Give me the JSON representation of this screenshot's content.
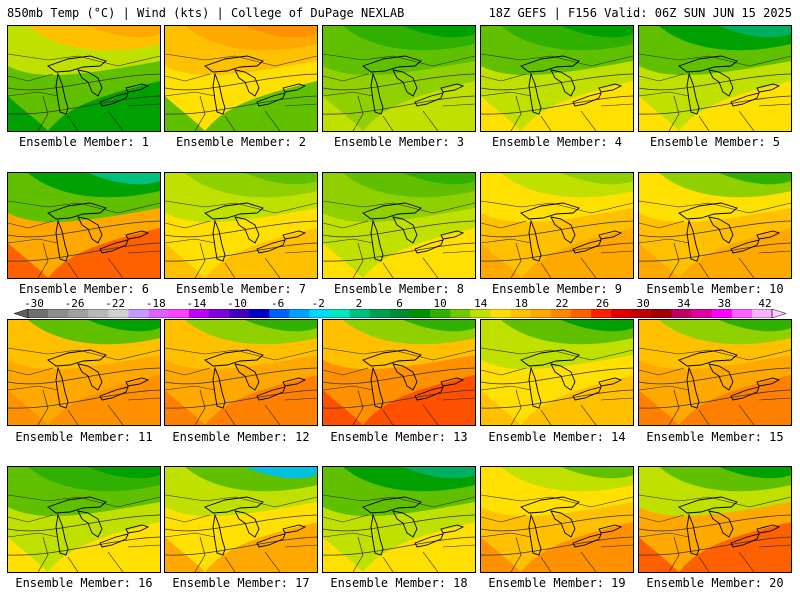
{
  "header": {
    "title_left": "850mb Temp (°C) | Wind (kts) | College of DuPage NEXLAB",
    "title_right": "18Z GEFS | F156 Valid: 06Z SUN JUN 15 2025"
  },
  "members": [
    {
      "label": "Ensemble Member: 1",
      "palette": [
        "#00a000",
        "#60c000",
        "#c0e000",
        "#ffc000",
        "#ffa800"
      ]
    },
    {
      "label": "Ensemble Member: 2",
      "palette": [
        "#60c000",
        "#ffe000",
        "#ffc000",
        "#ffa800",
        "#ff9000"
      ]
    },
    {
      "label": "Ensemble Member: 3",
      "palette": [
        "#c0e000",
        "#90d000",
        "#60c000",
        "#30b000",
        "#00a000"
      ]
    },
    {
      "label": "Ensemble Member: 4",
      "palette": [
        "#ffe000",
        "#c0e000",
        "#60c000",
        "#30b000",
        "#00a000"
      ]
    },
    {
      "label": "Ensemble Member: 5",
      "palette": [
        "#ffe000",
        "#c0e000",
        "#60c000",
        "#00a000",
        "#00b060"
      ]
    },
    {
      "label": "Ensemble Member: 6",
      "palette": [
        "#ff6000",
        "#ffa800",
        "#60c000",
        "#00a000",
        "#00c080"
      ]
    },
    {
      "label": "Ensemble Member: 7",
      "palette": [
        "#ffc000",
        "#ffe000",
        "#c0e000",
        "#90d000",
        "#60c000"
      ]
    },
    {
      "label": "Ensemble Member: 8",
      "palette": [
        "#ffe000",
        "#c0e000",
        "#90d000",
        "#60c000",
        "#30b000"
      ]
    },
    {
      "label": "Ensemble Member: 9",
      "palette": [
        "#ffa800",
        "#ffc000",
        "#ffe000",
        "#c0e000",
        "#90d000"
      ]
    },
    {
      "label": "Ensemble Member: 10",
      "palette": [
        "#ffa800",
        "#ffc000",
        "#ffe000",
        "#90d000",
        "#30b000"
      ]
    },
    {
      "label": "Ensemble Member: 11",
      "palette": [
        "#ff9000",
        "#ffa800",
        "#ffc000",
        "#60c000",
        "#00a000"
      ]
    },
    {
      "label": "Ensemble Member: 12",
      "palette": [
        "#ff8000",
        "#ffa800",
        "#ffc000",
        "#90d000",
        "#30b000"
      ]
    },
    {
      "label": "Ensemble Member: 13",
      "palette": [
        "#ff5000",
        "#ff9000",
        "#ffc000",
        "#90d000",
        "#30b000"
      ]
    },
    {
      "label": "Ensemble Member: 14",
      "palette": [
        "#ffc000",
        "#ffe000",
        "#c0e000",
        "#60c000",
        "#00a000"
      ]
    },
    {
      "label": "Ensemble Member: 15",
      "palette": [
        "#ff8000",
        "#ffa800",
        "#ffc000",
        "#90d000",
        "#30b000"
      ]
    },
    {
      "label": "Ensemble Member: 16",
      "palette": [
        "#ffe000",
        "#c0e000",
        "#60c000",
        "#30b000",
        "#00a000"
      ]
    },
    {
      "label": "Ensemble Member: 17",
      "palette": [
        "#ffa800",
        "#ffe000",
        "#c0e000",
        "#60c000",
        "#00c0e0"
      ]
    },
    {
      "label": "Ensemble Member: 18",
      "palette": [
        "#ffe000",
        "#c0e000",
        "#60c000",
        "#00a000",
        "#00b060"
      ]
    },
    {
      "label": "Ensemble Member: 19",
      "palette": [
        "#ff9000",
        "#ffc000",
        "#ffe000",
        "#c0e000",
        "#60c000"
      ]
    },
    {
      "label": "Ensemble Member: 20",
      "palette": [
        "#ff6000",
        "#ffa800",
        "#c0e000",
        "#60c000",
        "#00a000"
      ]
    }
  ],
  "colorbar": {
    "ticks": [
      "-30",
      "-26",
      "-22",
      "-18",
      "-14",
      "-10",
      "-6",
      "-2",
      "2",
      "6",
      "10",
      "14",
      "18",
      "22",
      "26",
      "30",
      "34",
      "38",
      "42"
    ],
    "colors": [
      "#707070",
      "#8c8c8c",
      "#a0a0a0",
      "#b8b8b8",
      "#d0d0d0",
      "#c896ff",
      "#e060ff",
      "#ff40ff",
      "#c000ff",
      "#8000e0",
      "#4000c0",
      "#0000c8",
      "#0060ff",
      "#00a0ff",
      "#00d8ff",
      "#00e8c0",
      "#00c080",
      "#00a050",
      "#008c30",
      "#009000",
      "#30b000",
      "#70c800",
      "#c0e000",
      "#ffe000",
      "#ffc000",
      "#ffa800",
      "#ff8800",
      "#ff6000",
      "#ff2000",
      "#e00000",
      "#c00000",
      "#a00000",
      "#c00060",
      "#e000a0",
      "#ff00ff",
      "#ff60ff",
      "#ffb0ff"
    ]
  }
}
